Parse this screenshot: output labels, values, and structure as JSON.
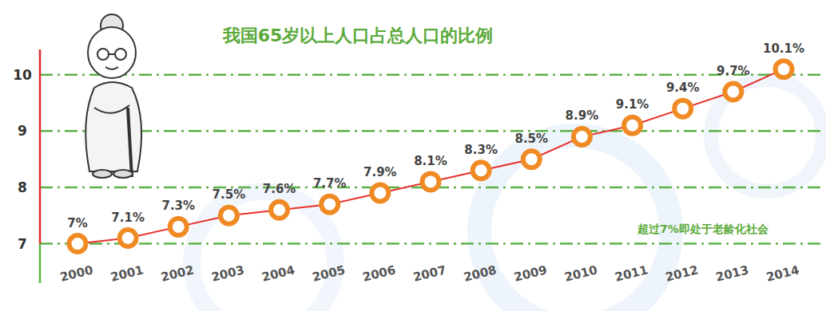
{
  "chart_data": {
    "type": "line",
    "title": "我国65岁以上人口占总人口的比例",
    "categories": [
      "2000",
      "2001",
      "2002",
      "2003",
      "2004",
      "2005",
      "2006",
      "2007",
      "2008",
      "2009",
      "2010",
      "2011",
      "2012",
      "2013",
      "2014"
    ],
    "values": [
      7,
      7.1,
      7.3,
      7.5,
      7.6,
      7.7,
      7.9,
      8.1,
      8.3,
      8.5,
      8.9,
      9.1,
      9.4,
      9.7,
      10.1
    ],
    "value_labels": [
      "7%",
      "7.1%",
      "7.3%",
      "7.5%",
      "7.6%",
      "7.7%",
      "7.9%",
      "8.1%",
      "8.3%",
      "8.5%",
      "8.9%",
      "9.1%",
      "9.4%",
      "9.7%",
      "10.1%"
    ],
    "annotations": [
      "超过7%即处于老龄化社会"
    ],
    "color": "#e8302a",
    "marker": "circle",
    "line_style": "solid",
    "ylim": [
      6.3,
      10.45
    ],
    "yticks": [
      7,
      8,
      9,
      10
    ],
    "grid": true,
    "data_labels": true
  }
}
